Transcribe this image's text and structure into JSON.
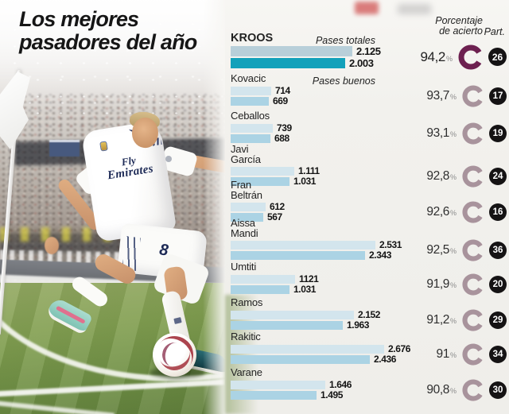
{
  "title": {
    "line1": "Los mejores",
    "line2": "pasadores del año"
  },
  "headers": {
    "pct_line1": "Porcentaje",
    "pct_line2": "de acierto",
    "part": "Part.",
    "pases_totales": "Pases totales",
    "pases_buenos": "Pases buenos"
  },
  "signs": {
    "percent": "%"
  },
  "colors": {
    "bar_total": "#d3e5ed",
    "bar_good": "#abd3e4",
    "bar_total_highlight": "#b8cfd9",
    "bar_good_highlight": "#13a1ba",
    "donut": "#a8939c",
    "donut_highlight": "#6d2150",
    "badge_bg": "#151314",
    "badge_text": "#ffffff",
    "panel_bg": "#f1f0ec"
  },
  "photo": {
    "jersey_line1": "Fly",
    "jersey_line2": "Emirates",
    "shorts_number": "8"
  },
  "chart_data": {
    "type": "bar",
    "title": "Los mejores pasadores del año",
    "orientation": "horizontal",
    "series_labels": [
      "Pases totales",
      "Pases buenos"
    ],
    "value_columns": [
      "Porcentaje de acierto",
      "Part."
    ],
    "players": [
      {
        "name": "KROOS",
        "total": 2125,
        "good": 2003,
        "total_label": "2.125",
        "good_label": "2.003",
        "pct": "94,2",
        "pct_value": 94.2,
        "part": "26",
        "highlight": true
      },
      {
        "name": "Kovacic",
        "total": 714,
        "good": 669,
        "total_label": "714",
        "good_label": "669",
        "pct": "93,7",
        "pct_value": 93.7,
        "part": "17",
        "highlight": false
      },
      {
        "name": "Ceballos",
        "total": 739,
        "good": 688,
        "total_label": "739",
        "good_label": "688",
        "pct": "93,1",
        "pct_value": 93.1,
        "part": "19",
        "highlight": false
      },
      {
        "name": "Javi\nGarcía",
        "total": 1111,
        "good": 1031,
        "total_label": "1.111",
        "good_label": "1.031",
        "pct": "92,8",
        "pct_value": 92.8,
        "part": "24",
        "highlight": false
      },
      {
        "name": "Fran\nBeltrán",
        "total": 612,
        "good": 567,
        "total_label": "612",
        "good_label": "567",
        "pct": "92,6",
        "pct_value": 92.6,
        "part": "16",
        "highlight": false
      },
      {
        "name": "Aissa\nMandi",
        "total": 2531,
        "good": 2343,
        "total_label": "2.531",
        "good_label": "2.343",
        "pct": "92,5",
        "pct_value": 92.5,
        "part": "36",
        "highlight": false
      },
      {
        "name": "Umtiti",
        "total": 1121,
        "good": 1031,
        "total_label": "1121",
        "good_label": "1.031",
        "pct": "91,9",
        "pct_value": 91.9,
        "part": "20",
        "highlight": false
      },
      {
        "name": "Ramos",
        "total": 2152,
        "good": 1963,
        "total_label": "2.152",
        "good_label": "1.963",
        "pct": "91,2",
        "pct_value": 91.2,
        "part": "29",
        "highlight": false
      },
      {
        "name": "Rakitic",
        "total": 2676,
        "good": 2436,
        "total_label": "2.676",
        "good_label": "2.436",
        "pct": "91",
        "pct_value": 91.0,
        "part": "34",
        "highlight": false
      },
      {
        "name": "Varane",
        "total": 1646,
        "good": 1495,
        "total_label": "1.646",
        "good_label": "1.495",
        "pct": "90,8",
        "pct_value": 90.8,
        "part": "30",
        "highlight": false
      }
    ]
  }
}
